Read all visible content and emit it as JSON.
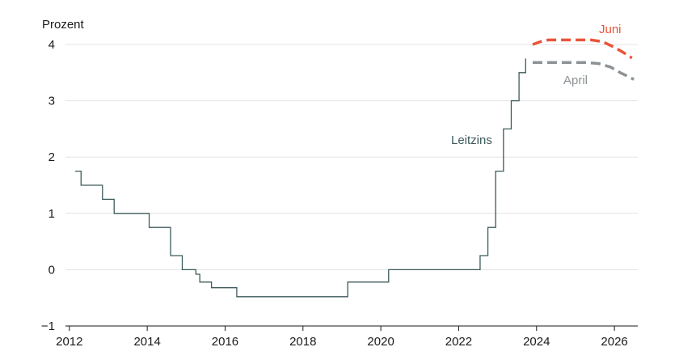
{
  "chart_data": {
    "type": "line",
    "ylabel": "Prozent",
    "ylim": [
      -1,
      4
    ],
    "xlim": [
      2011.9,
      2026.6
    ],
    "grid": true,
    "x_ticks": [
      2012,
      2014,
      2016,
      2018,
      2020,
      2022,
      2024,
      2026
    ],
    "y_ticks": [
      -1,
      0,
      1,
      2,
      3,
      4
    ],
    "colors": {
      "Leitzins": "#3d5a5b",
      "Juni": "#e8553a",
      "April": "#8c9295"
    },
    "series": [
      {
        "name": "Leitzins",
        "style": "step",
        "points": [
          [
            2012.15,
            1.75
          ],
          [
            2012.3,
            1.75
          ],
          [
            2012.3,
            1.5
          ],
          [
            2012.85,
            1.5
          ],
          [
            2012.85,
            1.25
          ],
          [
            2013.15,
            1.25
          ],
          [
            2013.15,
            1.0
          ],
          [
            2014.05,
            1.0
          ],
          [
            2014.05,
            0.75
          ],
          [
            2014.6,
            0.75
          ],
          [
            2014.6,
            0.25
          ],
          [
            2014.9,
            0.25
          ],
          [
            2014.9,
            0.0
          ],
          [
            2015.25,
            0.0
          ],
          [
            2015.25,
            -0.08
          ],
          [
            2015.35,
            -0.08
          ],
          [
            2015.35,
            -0.22
          ],
          [
            2015.65,
            -0.22
          ],
          [
            2015.65,
            -0.32
          ],
          [
            2016.3,
            -0.32
          ],
          [
            2016.3,
            -0.48
          ],
          [
            2019.15,
            -0.48
          ],
          [
            2019.15,
            -0.22
          ],
          [
            2020.2,
            -0.22
          ],
          [
            2020.2,
            0.0
          ],
          [
            2022.55,
            0.0
          ],
          [
            2022.55,
            0.25
          ],
          [
            2022.75,
            0.25
          ],
          [
            2022.75,
            0.75
          ],
          [
            2022.95,
            0.75
          ],
          [
            2022.95,
            1.75
          ],
          [
            2023.15,
            1.75
          ],
          [
            2023.15,
            2.5
          ],
          [
            2023.35,
            2.5
          ],
          [
            2023.35,
            3.0
          ],
          [
            2023.55,
            3.0
          ],
          [
            2023.55,
            3.5
          ],
          [
            2023.72,
            3.5
          ],
          [
            2023.72,
            3.75
          ]
        ]
      },
      {
        "name": "Juni",
        "style": "dashed",
        "points": [
          [
            2023.9,
            4.0
          ],
          [
            2024.1,
            4.05
          ],
          [
            2024.3,
            4.08
          ],
          [
            2024.6,
            4.08
          ],
          [
            2025.0,
            4.08
          ],
          [
            2025.4,
            4.08
          ],
          [
            2025.7,
            4.05
          ],
          [
            2026.0,
            3.95
          ],
          [
            2026.2,
            3.87
          ],
          [
            2026.45,
            3.76
          ]
        ]
      },
      {
        "name": "April",
        "style": "dashed",
        "points": [
          [
            2023.9,
            3.68
          ],
          [
            2024.3,
            3.68
          ],
          [
            2024.8,
            3.68
          ],
          [
            2025.3,
            3.68
          ],
          [
            2025.6,
            3.66
          ],
          [
            2025.9,
            3.6
          ],
          [
            2026.15,
            3.5
          ],
          [
            2026.5,
            3.38
          ]
        ]
      }
    ]
  }
}
